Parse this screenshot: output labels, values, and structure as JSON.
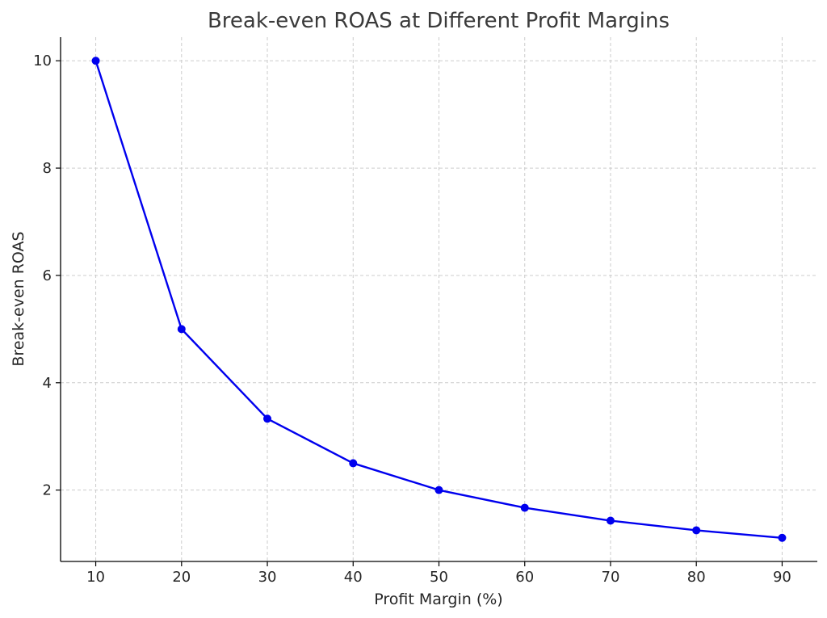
{
  "chart_data": {
    "type": "line",
    "title": "Break-even ROAS at Different Profit Margins",
    "xlabel": "Profit Margin (%)",
    "ylabel": "Break-even ROAS",
    "x": [
      10,
      20,
      30,
      40,
      50,
      60,
      70,
      80,
      90
    ],
    "series": [
      {
        "values": [
          10.0,
          5.0,
          3.33,
          2.5,
          2.0,
          1.67,
          1.43,
          1.25,
          1.11
        ],
        "color": "#0000ee",
        "marker": "circle"
      }
    ],
    "xticks": [
      "10",
      "20",
      "30",
      "40",
      "50",
      "60",
      "70",
      "80",
      "90"
    ],
    "yticks": [
      "2",
      "4",
      "6",
      "8",
      "10"
    ],
    "xlim": [
      5.9,
      94.1
    ],
    "ylim": [
      0.67,
      10.44
    ],
    "grid": true,
    "legend": "none"
  }
}
